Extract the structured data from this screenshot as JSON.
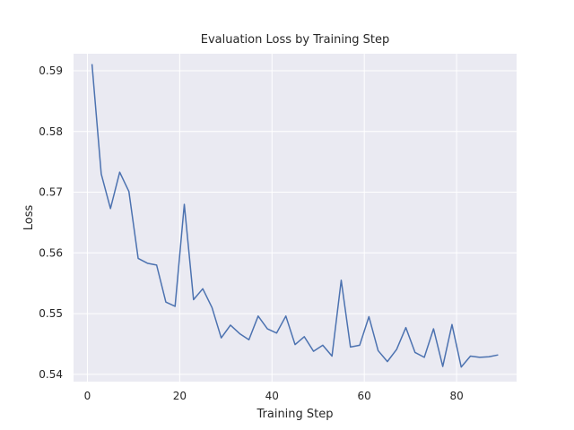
{
  "chart_data": {
    "type": "line",
    "title": "Evaluation Loss by Training Step",
    "xlabel": "Training Step",
    "ylabel": "Loss",
    "xlim": [
      -3,
      93
    ],
    "ylim": [
      0.5388,
      0.5928
    ],
    "xticks": [
      0,
      20,
      40,
      60,
      80
    ],
    "yticks": [
      0.54,
      0.55,
      0.56,
      0.57,
      0.58,
      0.59
    ],
    "xtick_labels": [
      "0",
      "20",
      "40",
      "60",
      "80"
    ],
    "ytick_labels": [
      "0.54",
      "0.55",
      "0.56",
      "0.57",
      "0.58",
      "0.59"
    ],
    "grid": true,
    "series": [
      {
        "color": "#4c72b0",
        "x": [
          1,
          3,
          5,
          7,
          9,
          11,
          13,
          15,
          17,
          19,
          21,
          23,
          25,
          27,
          29,
          31,
          33,
          35,
          37,
          39,
          41,
          43,
          45,
          47,
          49,
          51,
          53,
          55,
          57,
          59,
          61,
          63,
          65,
          67,
          69,
          71,
          73,
          75,
          77,
          79,
          81,
          83,
          85,
          87,
          89
        ],
        "y": [
          0.5911,
          0.573,
          0.5673,
          0.5733,
          0.5701,
          0.5591,
          0.5583,
          0.558,
          0.5519,
          0.5512,
          0.568,
          0.5523,
          0.5541,
          0.551,
          0.546,
          0.5481,
          0.5467,
          0.5457,
          0.5496,
          0.5475,
          0.5468,
          0.5496,
          0.5449,
          0.5462,
          0.5438,
          0.5448,
          0.543,
          0.5555,
          0.5445,
          0.5448,
          0.5495,
          0.5439,
          0.5421,
          0.5441,
          0.5477,
          0.5436,
          0.5428,
          0.5475,
          0.5413,
          0.5482,
          0.5412,
          0.543,
          0.5428,
          0.5429,
          0.5432
        ]
      }
    ]
  }
}
